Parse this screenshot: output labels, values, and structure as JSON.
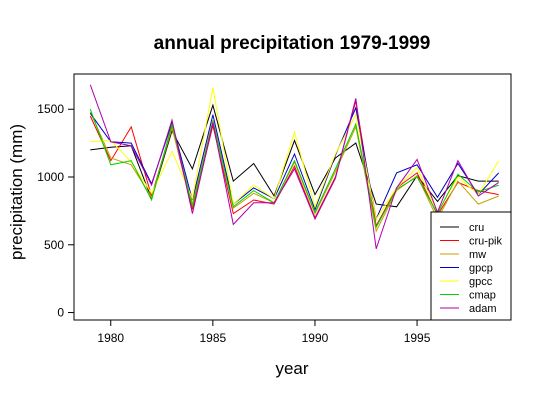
{
  "chart_data": {
    "type": "line",
    "title": "annual precipitation 1979-1999",
    "xlabel": "year",
    "ylabel": "precipitation (mm)",
    "xlim": [
      1979,
      1999
    ],
    "ylim": [
      0,
      1700
    ],
    "x_ticks": [
      1980,
      1985,
      1990,
      1995
    ],
    "y_ticks": [
      0,
      500,
      1000,
      1500
    ],
    "legend_position": "bottom-right",
    "grid": false,
    "x": [
      1979,
      1980,
      1981,
      1982,
      1983,
      1984,
      1985,
      1986,
      1987,
      1988,
      1989,
      1990,
      1991,
      1992,
      1993,
      1994,
      1995,
      1996,
      1997,
      1998,
      1999
    ],
    "series": [
      {
        "name": "cru",
        "color": "#000000",
        "values": [
          1200,
          1220,
          1230,
          840,
          1340,
          1060,
          1530,
          970,
          1100,
          860,
          1270,
          870,
          1140,
          1250,
          800,
          780,
          1010,
          820,
          1010,
          970,
          970
        ]
      },
      {
        "name": "cru-pik",
        "color": "#ff0000",
        "values": [
          1450,
          1120,
          1370,
          860,
          1370,
          760,
          1380,
          730,
          830,
          800,
          1080,
          700,
          1000,
          1560,
          640,
          920,
          1030,
          720,
          960,
          900,
          870
        ]
      },
      {
        "name": "mw",
        "color": "#c8a000",
        "values": [
          1480,
          1140,
          1090,
          850,
          1360,
          800,
          1420,
          770,
          880,
          810,
          1110,
          730,
          1040,
          1370,
          600,
          900,
          1010,
          690,
          970,
          800,
          860
        ]
      },
      {
        "name": "gpcp",
        "color": "#0000c8",
        "values": [
          1470,
          1260,
          1250,
          950,
          1400,
          830,
          1460,
          800,
          920,
          840,
          1170,
          760,
          1160,
          1510,
          690,
          1030,
          1090,
          850,
          1100,
          870,
          1030
        ]
      },
      {
        "name": "gpcc",
        "color": "#ffff00",
        "values": [
          1260,
          1270,
          1110,
          880,
          1190,
          840,
          1660,
          800,
          940,
          840,
          1330,
          780,
          1170,
          1460,
          690,
          920,
          1070,
          740,
          1000,
          870,
          1120
        ]
      },
      {
        "name": "cmap",
        "color": "#00d000",
        "values": [
          1500,
          1090,
          1120,
          830,
          1390,
          780,
          1410,
          780,
          900,
          810,
          1120,
          740,
          1060,
          1390,
          630,
          910,
          1000,
          730,
          1020,
          890,
          940
        ]
      },
      {
        "name": "adam",
        "color": "#b000b0",
        "values": [
          1680,
          1260,
          1230,
          940,
          1420,
          730,
          1400,
          650,
          810,
          810,
          1060,
          690,
          990,
          1580,
          470,
          920,
          1130,
          740,
          1120,
          860,
          960
        ]
      }
    ]
  }
}
